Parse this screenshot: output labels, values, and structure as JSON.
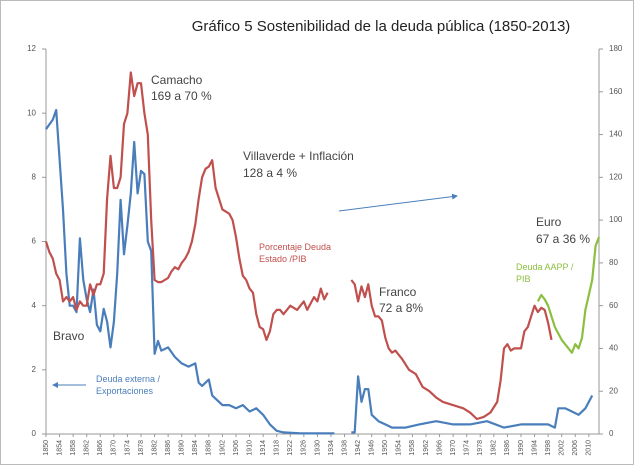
{
  "chart_data": {
    "type": "line",
    "title": "Gráfico 5 Sostenibilidad de la deuda pública (1850-2013)",
    "xlim": [
      1850,
      2013
    ],
    "xticks": [
      1850,
      1854,
      1858,
      1862,
      1866,
      1870,
      1874,
      1878,
      1882,
      1886,
      1890,
      1894,
      1898,
      1902,
      1906,
      1910,
      1914,
      1918,
      1922,
      1926,
      1930,
      1934,
      1938,
      1942,
      1946,
      1950,
      1954,
      1958,
      1962,
      1966,
      1970,
      1974,
      1978,
      1982,
      1986,
      1990,
      1994,
      1998,
      2002,
      2006,
      2010
    ],
    "ylim": [
      0,
      12
    ],
    "yticks": [
      0,
      2,
      4,
      6,
      8,
      10,
      12
    ],
    "y2lim": [
      0,
      180
    ],
    "y2ticks": [
      0,
      20,
      40,
      60,
      80,
      100,
      120,
      140,
      160,
      180
    ],
    "series": [
      {
        "name": "Deuda externa / Exportaciones",
        "color": "#4a7ebb",
        "axis": "y",
        "x": [
          1850,
          1852,
          1853,
          1855,
          1856,
          1857,
          1858,
          1859,
          1860,
          1861,
          1862,
          1863,
          1864,
          1865,
          1866,
          1867,
          1868,
          1869,
          1870,
          1871,
          1872,
          1873,
          1874,
          1875,
          1876,
          1877,
          1878,
          1879,
          1880,
          1881,
          1882,
          1883,
          1884,
          1886,
          1888,
          1890,
          1892,
          1894,
          1895,
          1896,
          1898,
          1899,
          1900,
          1902,
          1904,
          1906,
          1908,
          1910,
          1912,
          1914,
          1916,
          1918,
          1920,
          1925,
          1930,
          1935,
          1937,
          1940,
          1941,
          1942,
          1943,
          1944,
          1945,
          1946,
          1948,
          1950,
          1952,
          1956,
          1960,
          1965,
          1970,
          1975,
          1980,
          1985,
          1990,
          1994,
          1998,
          2000,
          2001,
          2003,
          2005,
          2007,
          2009,
          2011
        ],
        "values": [
          9.5,
          9.8,
          10.1,
          7,
          5,
          4,
          4,
          3.8,
          6.1,
          4.8,
          4.2,
          3.8,
          4.5,
          3.4,
          3.2,
          3.9,
          3.5,
          2.7,
          3.5,
          5,
          7.3,
          5.6,
          6.5,
          7.5,
          9.1,
          7.5,
          8.2,
          8.1,
          6,
          5.7,
          2.5,
          2.9,
          2.6,
          2.7,
          2.4,
          2.2,
          2.1,
          2.2,
          1.6,
          1.5,
          1.7,
          1.2,
          1.1,
          0.9,
          0.9,
          0.8,
          0.9,
          0.7,
          0.8,
          0.6,
          0.3,
          0.1,
          0.05,
          0.02,
          0.02,
          0.02,
          null,
          0.05,
          0.05,
          1.8,
          1.0,
          1.4,
          1.4,
          0.6,
          0.4,
          0.3,
          0.2,
          0.2,
          0.3,
          0.4,
          0.3,
          0.3,
          0.4,
          0.2,
          0.3,
          0.3,
          0.3,
          0.2,
          0.8,
          0.8,
          0.7,
          0.6,
          0.8,
          1.2
        ]
      },
      {
        "name": "Porcentaje Deuda Estado /PIB",
        "color": "#c0504d",
        "axis": "y2",
        "x": [
          1850,
          1851,
          1852,
          1853,
          1854,
          1855,
          1856,
          1857,
          1858,
          1859,
          1860,
          1861,
          1862,
          1863,
          1864,
          1865,
          1866,
          1867,
          1868,
          1869,
          1870,
          1871,
          1872,
          1873,
          1874,
          1875,
          1876,
          1877,
          1878,
          1879,
          1880,
          1881,
          1882,
          1883,
          1884,
          1885,
          1886,
          1887,
          1888,
          1889,
          1890,
          1891,
          1892,
          1893,
          1894,
          1895,
          1896,
          1897,
          1898,
          1899,
          1900,
          1901,
          1902,
          1903,
          1904,
          1905,
          1906,
          1907,
          1908,
          1909,
          1910,
          1911,
          1912,
          1913,
          1914,
          1915,
          1916,
          1917,
          1918,
          1919,
          1920,
          1921,
          1922,
          1923,
          1924,
          1925,
          1926,
          1927,
          1928,
          1929,
          1930,
          1931,
          1932,
          1933,
          1936,
          1940,
          1941,
          1942,
          1943,
          1944,
          1945,
          1946,
          1947,
          1948,
          1949,
          1950,
          1951,
          1952,
          1953,
          1954,
          1955,
          1957,
          1959,
          1961,
          1963,
          1965,
          1967,
          1969,
          1971,
          1973,
          1975,
          1977,
          1979,
          1981,
          1983,
          1984,
          1985,
          1986,
          1987,
          1988,
          1990,
          1991,
          1992,
          1993,
          1994,
          1995,
          1996,
          1997,
          1998,
          1999
        ],
        "values": [
          90,
          85,
          82,
          75,
          72,
          62,
          64,
          62,
          64,
          58,
          62,
          60,
          60,
          70,
          65,
          70,
          70,
          75,
          110,
          130,
          115,
          115,
          120,
          145,
          150,
          169,
          158,
          164,
          164,
          150,
          140,
          100,
          72,
          71,
          71,
          72,
          73,
          76,
          78,
          77,
          80,
          82,
          85,
          90,
          98,
          110,
          120,
          124,
          125,
          128,
          115,
          110,
          105,
          104,
          103,
          100,
          92,
          82,
          74,
          72,
          68,
          66,
          56,
          50,
          49,
          44,
          48,
          56,
          58,
          58,
          56,
          58,
          60,
          59,
          58,
          60,
          62,
          58,
          61,
          64,
          62,
          68,
          63,
          66,
          null,
          72,
          70,
          62,
          69,
          64,
          70,
          60,
          55,
          55,
          53,
          45,
          40,
          38,
          39,
          37,
          35,
          30,
          28,
          22,
          20,
          17,
          15,
          14,
          13,
          12,
          10,
          7,
          8,
          10,
          15,
          25,
          40,
          42,
          39,
          40,
          40,
          48,
          50,
          55,
          60,
          57,
          59,
          58,
          52,
          44
        ]
      },
      {
        "name": "Deuda AAPP / PIB",
        "color": "#8cbf3f",
        "axis": "y2",
        "x": [
          1995,
          1996,
          1997,
          1998,
          1999,
          2000,
          2001,
          2002,
          2003,
          2004,
          2005,
          2006,
          2007,
          2008,
          2009,
          2010,
          2011,
          2012,
          2013
        ],
        "values": [
          62,
          65,
          63,
          60,
          55,
          50,
          47,
          44,
          42,
          40,
          38,
          42,
          40,
          45,
          58,
          65,
          72,
          88,
          92
        ]
      }
    ],
    "annotations": [
      "Camacho",
      "169 a 70 %",
      "Villaverde + Inflación",
      "128 a 4 %",
      "Franco",
      "72 a 8%",
      "Euro",
      "67 a 36 %",
      "Bravo"
    ]
  }
}
